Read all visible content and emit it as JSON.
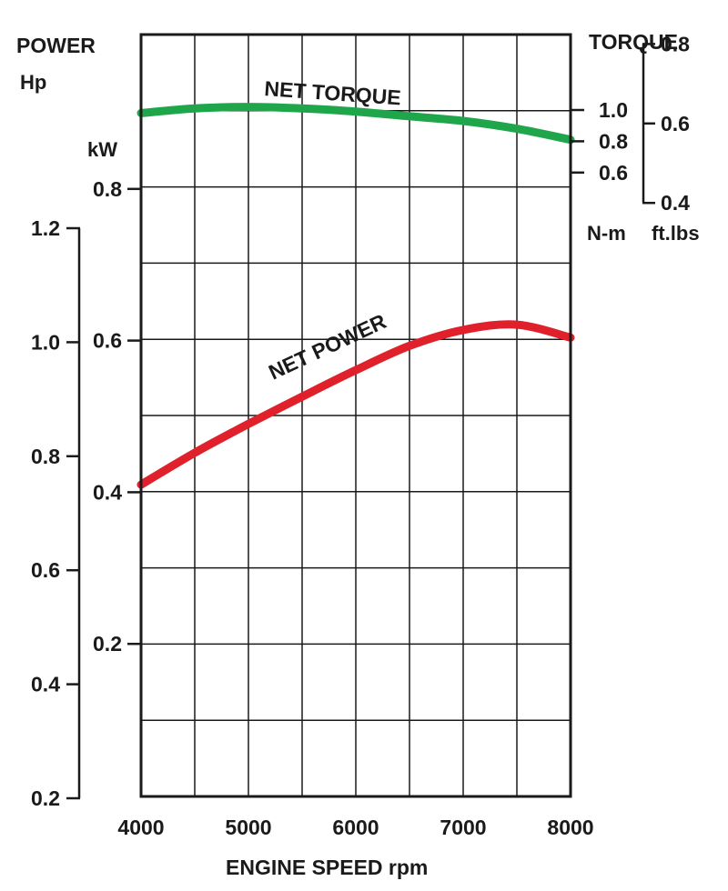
{
  "chart_data": {
    "type": "line",
    "x_label": "ENGINE SPEED rpm",
    "x_ticks": [
      "4000",
      "5000",
      "6000",
      "7000",
      "8000"
    ],
    "xlim": [
      4000,
      8000
    ],
    "grid": true,
    "left_axis": {
      "title": "POWER",
      "hp": {
        "unit": "Hp",
        "ticks": [
          "1.2",
          "1.0",
          "0.8",
          "0.6",
          "0.4",
          "0.2"
        ],
        "tick_values": [
          1.2,
          1.0,
          0.8,
          0.6,
          0.4,
          0.2
        ]
      },
      "kw": {
        "unit": "kW",
        "ticks": [
          "0.8",
          "0.6",
          "0.4",
          "0.2"
        ],
        "tick_values": [
          0.8,
          0.6,
          0.4,
          0.2
        ]
      }
    },
    "right_axis": {
      "title": "TORQUE",
      "nm": {
        "unit": "N-m",
        "ticks": [
          "1.0",
          "0.8",
          "0.6"
        ],
        "tick_values": [
          1.0,
          0.8,
          0.6
        ]
      },
      "ftlbs": {
        "unit": "ft.lbs",
        "ticks": [
          "0.8",
          "0.6",
          "0.4"
        ],
        "tick_values": [
          0.8,
          0.6,
          0.4
        ]
      }
    },
    "series": [
      {
        "name": "NET TORQUE",
        "unit": "N-m",
        "color": "#1fa64a",
        "x": [
          4000,
          4500,
          5000,
          5500,
          6000,
          6500,
          7000,
          7500,
          8000
        ],
        "y": [
          0.98,
          1.01,
          1.02,
          1.01,
          0.99,
          0.96,
          0.93,
          0.88,
          0.81
        ]
      },
      {
        "name": "NET POWER",
        "unit": "kW",
        "color": "#e0202b",
        "x": [
          4000,
          4500,
          5000,
          5500,
          6000,
          6500,
          7000,
          7500,
          8000
        ],
        "y": [
          0.41,
          0.452,
          0.49,
          0.526,
          0.561,
          0.593,
          0.614,
          0.621,
          0.604
        ]
      }
    ]
  }
}
